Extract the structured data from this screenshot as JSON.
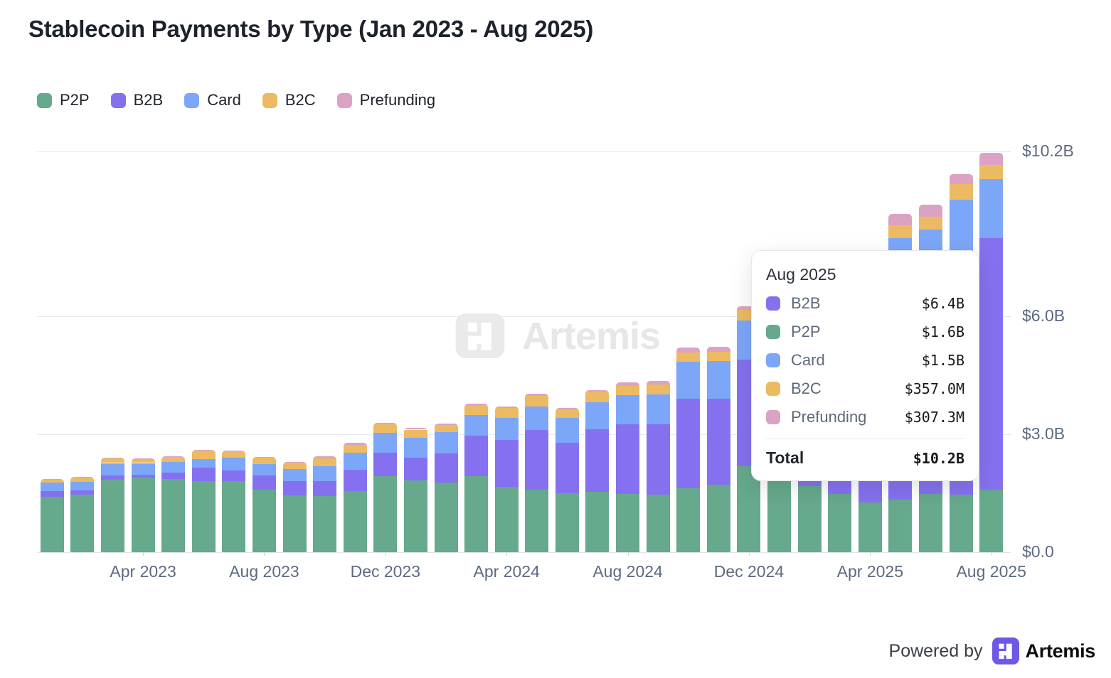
{
  "chart_data": {
    "type": "bar",
    "stacked": true,
    "title": "Stablecoin Payments by Type (Jan 2023 - Aug 2025)",
    "unit": "USD billions",
    "categories": [
      "Jan 2023",
      "Feb 2023",
      "Mar 2023",
      "Apr 2023",
      "May 2023",
      "Jun 2023",
      "Jul 2023",
      "Aug 2023",
      "Sep 2023",
      "Oct 2023",
      "Nov 2023",
      "Dec 2023",
      "Jan 2024",
      "Feb 2024",
      "Mar 2024",
      "Apr 2024",
      "May 2024",
      "Jun 2024",
      "Jul 2024",
      "Aug 2024",
      "Sep 2024",
      "Oct 2024",
      "Nov 2024",
      "Dec 2024",
      "Jan 2025",
      "Feb 2025",
      "Mar 2025",
      "Apr 2025",
      "May 2025",
      "Jun 2025",
      "Jul 2025",
      "Aug 2025"
    ],
    "series": [
      {
        "name": "P2P",
        "color": "#66a98c",
        "values": [
          1.41,
          1.47,
          1.84,
          1.9,
          1.86,
          1.81,
          1.8,
          1.59,
          1.45,
          1.43,
          1.56,
          1.93,
          1.83,
          1.77,
          1.93,
          1.66,
          1.59,
          1.5,
          1.53,
          1.48,
          1.47,
          1.62,
          1.71,
          2.19,
          2.25,
          1.69,
          1.48,
          1.27,
          1.34,
          1.49,
          1.46,
          1.6
        ]
      },
      {
        "name": "B2B",
        "color": "#8571ef",
        "values": [
          0.14,
          0.1,
          0.11,
          0.08,
          0.17,
          0.34,
          0.28,
          0.36,
          0.35,
          0.37,
          0.54,
          0.6,
          0.57,
          0.74,
          1.04,
          1.19,
          1.52,
          1.29,
          1.6,
          1.77,
          1.78,
          2.29,
          2.2,
          2.71,
          3.1,
          3.9,
          4.4,
          4.7,
          5.4,
          5.4,
          6.0,
          6.4
        ]
      },
      {
        "name": "Card",
        "color": "#7ca6f8",
        "values": [
          0.22,
          0.22,
          0.32,
          0.29,
          0.27,
          0.22,
          0.32,
          0.3,
          0.31,
          0.39,
          0.43,
          0.51,
          0.52,
          0.55,
          0.52,
          0.57,
          0.6,
          0.62,
          0.69,
          0.75,
          0.77,
          0.93,
          0.95,
          0.99,
          0.95,
          0.95,
          1.05,
          1.1,
          1.25,
          1.32,
          1.51,
          1.5
        ]
      },
      {
        "name": "B2C",
        "color": "#ecba62",
        "values": [
          0.08,
          0.11,
          0.12,
          0.09,
          0.13,
          0.21,
          0.17,
          0.16,
          0.17,
          0.2,
          0.21,
          0.21,
          0.2,
          0.18,
          0.25,
          0.25,
          0.27,
          0.22,
          0.26,
          0.23,
          0.24,
          0.24,
          0.24,
          0.27,
          0.22,
          0.22,
          0.25,
          0.25,
          0.33,
          0.33,
          0.39,
          0.357
        ]
      },
      {
        "name": "Prefunding",
        "color": "#dca2c4",
        "values": [
          0.02,
          0.02,
          0.02,
          0.03,
          0.02,
          0.02,
          0.02,
          0.02,
          0.02,
          0.05,
          0.05,
          0.05,
          0.05,
          0.04,
          0.04,
          0.04,
          0.05,
          0.04,
          0.05,
          0.09,
          0.1,
          0.12,
          0.13,
          0.1,
          0.12,
          0.12,
          0.15,
          0.18,
          0.29,
          0.31,
          0.27,
          0.307
        ]
      }
    ],
    "stack_order": [
      "P2P",
      "B2B",
      "Card",
      "B2C",
      "Prefunding"
    ],
    "ylim": [
      0,
      10.2
    ],
    "yticks": [
      {
        "value": 0,
        "label": "$0.0"
      },
      {
        "value": 3,
        "label": "$3.0B"
      },
      {
        "value": 6,
        "label": "$6.0B"
      },
      {
        "value": 10.2,
        "label": "$10.2B"
      }
    ],
    "xticks": [
      {
        "index": 3,
        "label": "Apr 2023"
      },
      {
        "index": 7,
        "label": "Aug 2023"
      },
      {
        "index": 11,
        "label": "Dec 2023"
      },
      {
        "index": 15,
        "label": "Apr 2024"
      },
      {
        "index": 19,
        "label": "Aug 2024"
      },
      {
        "index": 23,
        "label": "Dec 2024"
      },
      {
        "index": 27,
        "label": "Apr 2025"
      },
      {
        "index": 31,
        "label": "Aug 2025"
      }
    ],
    "legend_position": "top-left",
    "grid": "horizontal"
  },
  "legend": {
    "items": [
      "P2P",
      "B2B",
      "Card",
      "B2C",
      "Prefunding"
    ]
  },
  "tooltip": {
    "title": "Aug 2025",
    "rows": [
      {
        "series": "B2B",
        "value": "$6.4B"
      },
      {
        "series": "P2P",
        "value": "$1.6B"
      },
      {
        "series": "Card",
        "value": "$1.5B"
      },
      {
        "series": "B2C",
        "value": "$357.0M"
      },
      {
        "series": "Prefunding",
        "value": "$307.3M"
      }
    ],
    "total_label": "Total",
    "total_value": "$10.2B"
  },
  "watermark": {
    "text": "Artemis"
  },
  "footer": {
    "powered_by": "Powered by",
    "brand": "Artemis"
  }
}
